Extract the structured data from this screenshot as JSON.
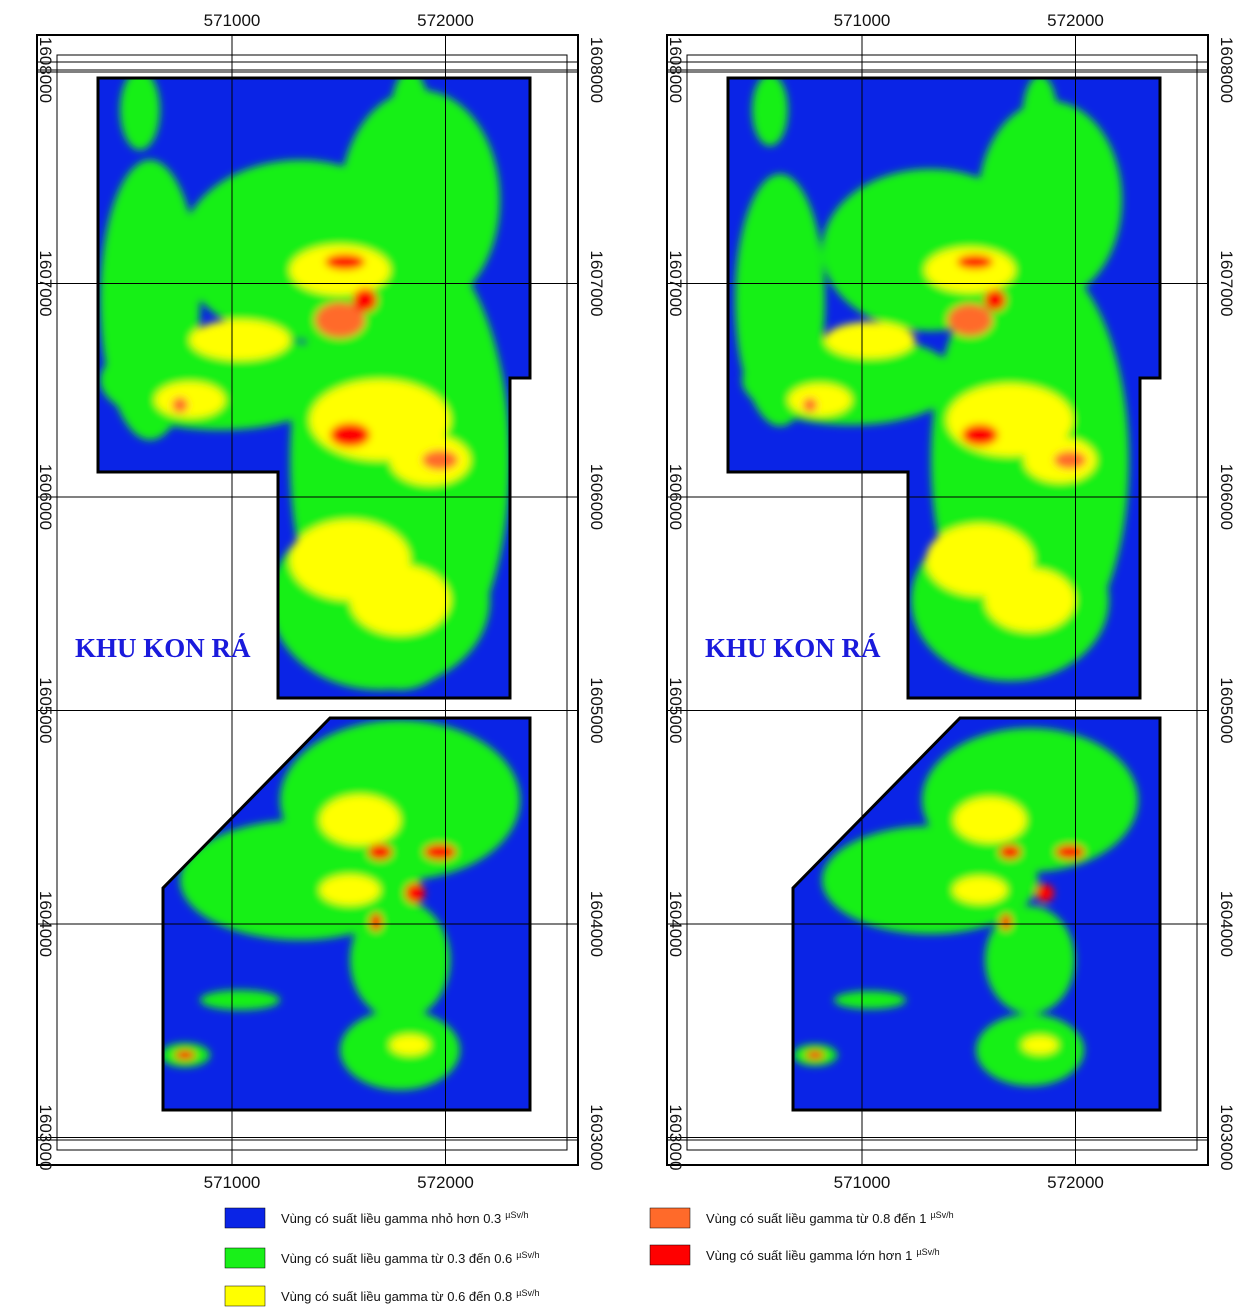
{
  "maps": [
    {
      "easting": [
        571000,
        572000
      ],
      "northing": [
        1608000,
        1607000,
        1606000,
        1605000,
        1604000,
        1603000
      ],
      "label": "KHU KON RÁ"
    },
    {
      "easting": [
        571000,
        572000
      ],
      "northing": [
        1608000,
        1607000,
        1606000,
        1605000,
        1604000,
        1603000
      ],
      "label": "KHU KON RÁ"
    }
  ],
  "legend": [
    {
      "text": "Vùng có suất liều gamma nhỏ hơn 0.3",
      "unit": "µSv/h",
      "color": "#0a24e6"
    },
    {
      "text": "Vùng có suất liều gamma từ 0.3 đến 0.6",
      "unit": "µSv/h",
      "color": "#19f019"
    },
    {
      "text": "Vùng có suất liều gamma từ 0.6 đến 0.8",
      "unit": "µSv/h",
      "color": "#ffff00"
    },
    {
      "text": "Vùng có suất liều gamma từ 0.8 đến 1",
      "unit": "µSv/h",
      "color": "#ff6a2a"
    },
    {
      "text": "Vùng có suất liều gamma lớn hơn 1",
      "unit": "µSv/h",
      "color": "#ff0000"
    }
  ]
}
